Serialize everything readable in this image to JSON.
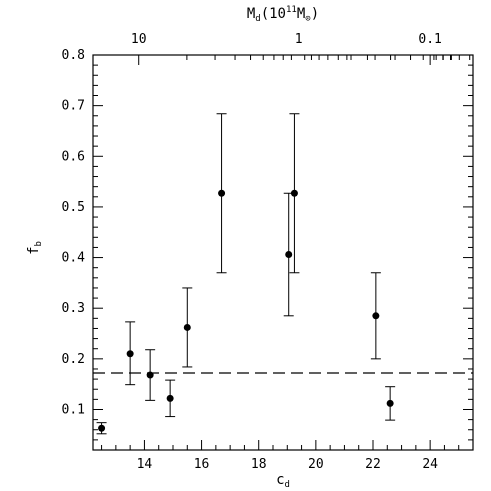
{
  "chart_data": {
    "type": "scatter",
    "xlabel": "c_d",
    "ylabel": "f_b",
    "top_axis_label": "M_d(10^11 M_⊙)",
    "xlim": [
      12.2,
      25.5
    ],
    "ylim": [
      0.02,
      0.8
    ],
    "x_ticks": [
      14,
      16,
      18,
      20,
      22,
      24
    ],
    "y_ticks": [
      0.1,
      0.2,
      0.3,
      0.4,
      0.5,
      0.6,
      0.7,
      0.8
    ],
    "top_ticks_labeled": [
      {
        "x": 13.8,
        "label": "10"
      },
      {
        "x": 19.4,
        "label": "1"
      },
      {
        "x": 24.0,
        "label": "0.1"
      }
    ],
    "reference_line": {
      "y": 0.172,
      "style": "dashed"
    },
    "points": [
      {
        "x": 12.5,
        "y": 0.063,
        "err_low": 0.011,
        "err_high": 0.011
      },
      {
        "x": 13.5,
        "y": 0.21,
        "err_low": 0.061,
        "err_high": 0.063
      },
      {
        "x": 14.2,
        "y": 0.168,
        "err_low": 0.05,
        "err_high": 0.05
      },
      {
        "x": 14.9,
        "y": 0.122,
        "err_low": 0.036,
        "err_high": 0.036
      },
      {
        "x": 15.5,
        "y": 0.262,
        "err_low": 0.078,
        "err_high": 0.078
      },
      {
        "x": 16.7,
        "y": 0.527,
        "err_low": 0.157,
        "err_high": 0.157
      },
      {
        "x": 19.05,
        "y": 0.406,
        "err_low": 0.121,
        "err_high": 0.121
      },
      {
        "x": 19.25,
        "y": 0.527,
        "err_low": 0.157,
        "err_high": 0.157
      },
      {
        "x": 22.1,
        "y": 0.285,
        "err_low": 0.085,
        "err_high": 0.085
      },
      {
        "x": 22.6,
        "y": 0.112,
        "err_low": 0.033,
        "err_high": 0.033
      }
    ],
    "grid": false,
    "legend": "none"
  }
}
